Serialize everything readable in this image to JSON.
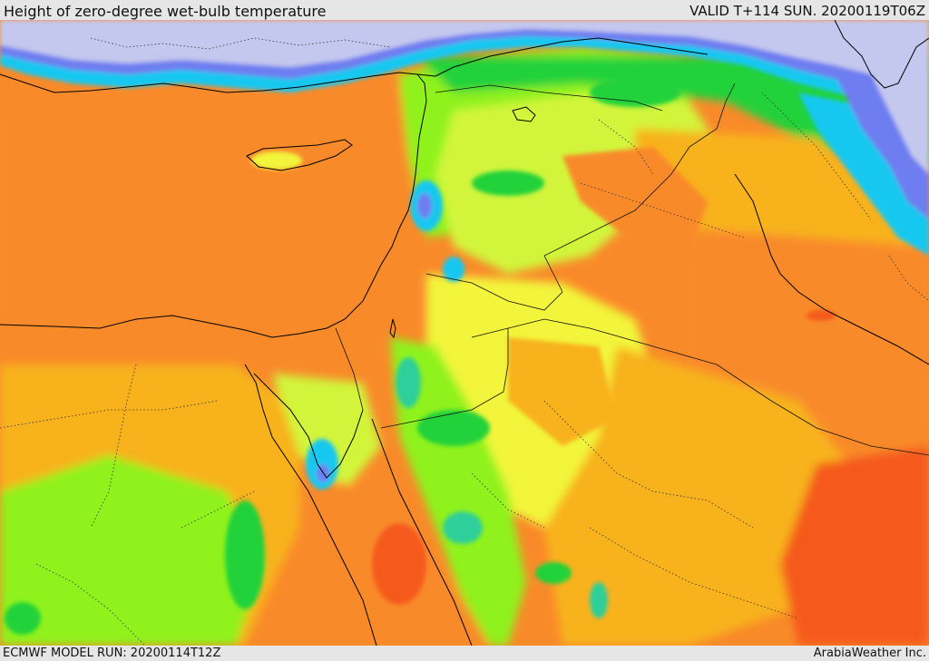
{
  "header": {
    "title": "Height of zero-degree wet-bulb temperature",
    "valid_time": "VALID T+114 SUN. 20200119T06Z"
  },
  "footer": {
    "model_run": "ECMWF MODEL RUN: 20200114T12Z",
    "credit": "ArabiaWeather Inc."
  },
  "map": {
    "region": "Eastern Mediterranean, Levant, Arabian Peninsula, Egypt",
    "palette": {
      "lowest": "#c4c8ee",
      "very_low": "#6e7ef0",
      "low": "#19c8f0",
      "cyan_green": "#2fcf9a",
      "green": "#22d23a",
      "light_green": "#8ff21e",
      "yellow_green": "#d2f53a",
      "yellow": "#f2f53a",
      "amber": "#f8b21e",
      "orange": "#f98a2a",
      "red_orange": "#f55a1c"
    },
    "overlays": [
      "coastlines",
      "country-borders",
      "province-borders"
    ]
  }
}
